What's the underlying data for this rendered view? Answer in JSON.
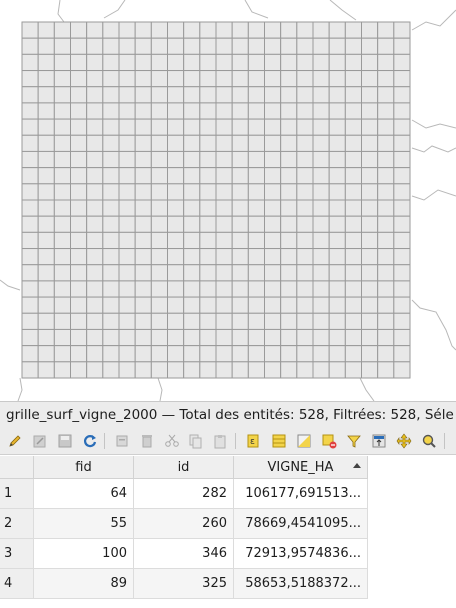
{
  "window_title": "grille_surf_vigne_2000 — Total des entités: 528, Filtrées: 528, Séle",
  "map": {
    "grid_columns": 24,
    "grid_rows": 22,
    "grid_fill": "#e8e8e8",
    "grid_stroke": "#9a9a9a",
    "boundary_color": "#b8b8b8"
  },
  "toolbar": [
    "edit-pencil-icon",
    "multi-edit-icon",
    "save-edits-icon",
    "reload-icon",
    "add-feature-icon",
    "delete-feature-icon",
    "cut-icon",
    "copy-icon",
    "paste-icon",
    "expression-select-icon",
    "select-all-icon",
    "invert-selection-icon",
    "deselect-icon",
    "filter-icon",
    "move-selection-top-icon",
    "pan-to-selection-icon",
    "zoom-to-selection-icon"
  ],
  "table": {
    "columns": [
      "fid",
      "id",
      "VIGNE_HA"
    ],
    "sort_column": "VIGNE_HA",
    "sort_order": "descending",
    "rows": [
      {
        "row": "1",
        "fid": "64",
        "id": "282",
        "vigne_ha": "106177,691513..."
      },
      {
        "row": "2",
        "fid": "55",
        "id": "260",
        "vigne_ha": "78669,4541095..."
      },
      {
        "row": "3",
        "fid": "100",
        "id": "346",
        "vigne_ha": "72913,9574836..."
      },
      {
        "row": "4",
        "fid": "89",
        "id": "325",
        "vigne_ha": "58653,5188372..."
      }
    ]
  }
}
